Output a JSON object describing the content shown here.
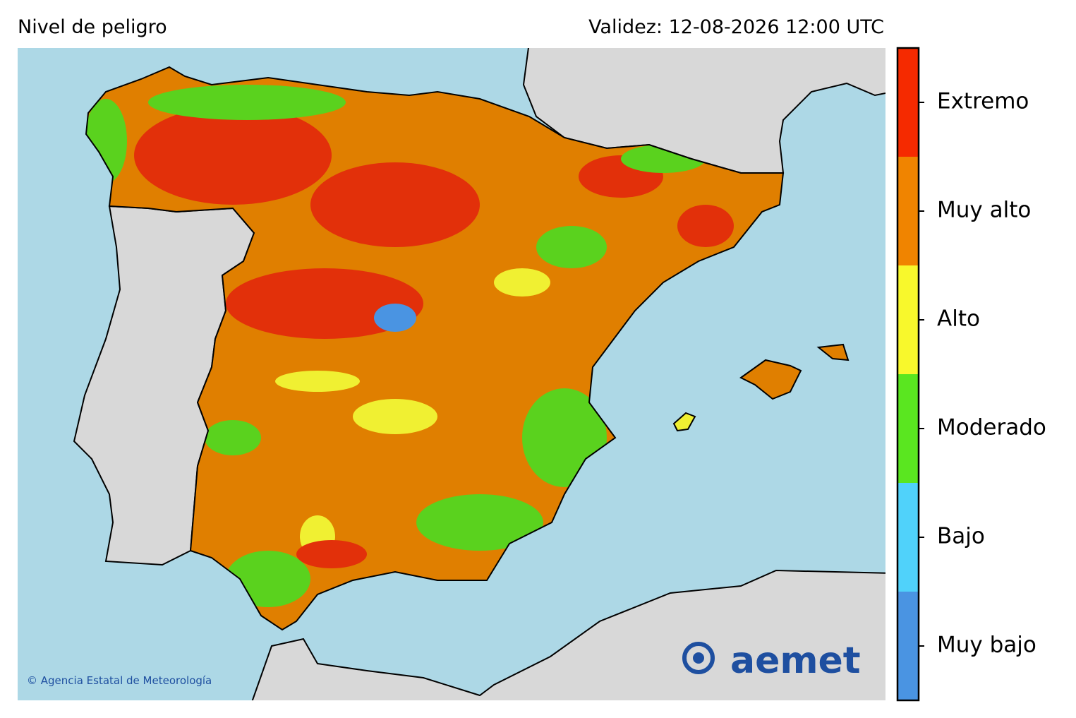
{
  "header": {
    "title": "Nivel de peligro",
    "validity": "Validez: 12-08-2026 12:00 UTC"
  },
  "legend": {
    "levels": [
      {
        "label": "Extremo",
        "color": "#f52a00"
      },
      {
        "label": "Muy alto",
        "color": "#f08400"
      },
      {
        "label": "Alto",
        "color": "#f8f82c"
      },
      {
        "label": "Moderado",
        "color": "#5ae620"
      },
      {
        "label": "Bajo",
        "color": "#50d2fa"
      },
      {
        "label": "Muy bajo",
        "color": "#4a94e2"
      }
    ]
  },
  "credit": "© Agencia Estatal de Meteorología",
  "logo": "aemet"
}
